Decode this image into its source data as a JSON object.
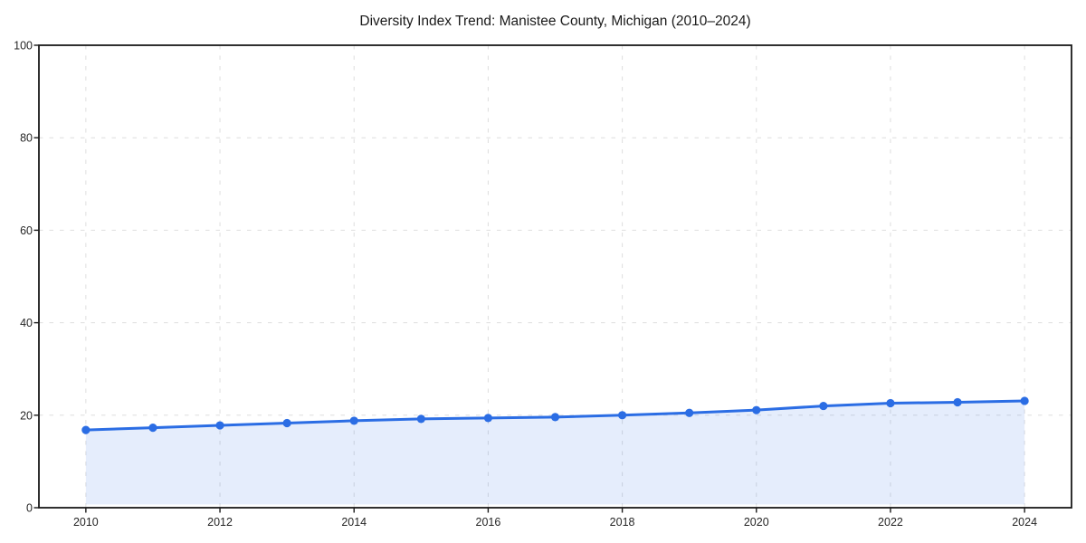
{
  "chart_data": {
    "type": "line",
    "title": "Diversity Index Trend: Manistee County, Michigan (2010–2024)",
    "series_name": "Diversity Index",
    "x": [
      2010,
      2011,
      2012,
      2013,
      2014,
      2015,
      2016,
      2017,
      2018,
      2019,
      2020,
      2021,
      2022,
      2023,
      2024
    ],
    "values": [
      16.8,
      17.3,
      17.8,
      18.3,
      18.8,
      19.2,
      19.4,
      19.6,
      20.0,
      20.5,
      21.1,
      22.0,
      22.6,
      22.8,
      23.1
    ],
    "xlabel": "",
    "ylabel": "",
    "xlim": [
      2009.3,
      2024.7
    ],
    "ylim": [
      0,
      100
    ],
    "xticks": [
      2010,
      2012,
      2014,
      2016,
      2018,
      2020,
      2022,
      2024
    ],
    "yticks": [
      0,
      20,
      40,
      60,
      80,
      100
    ],
    "grid": "dashed",
    "legend": "none",
    "line_color": "#2b6de4",
    "marker_color": "#2b6de4",
    "fill_color": "rgba(43,109,228,0.12)",
    "grid_color": "#dedede",
    "axis_color": "#1a1a1a",
    "area_baseline": 0.7
  }
}
